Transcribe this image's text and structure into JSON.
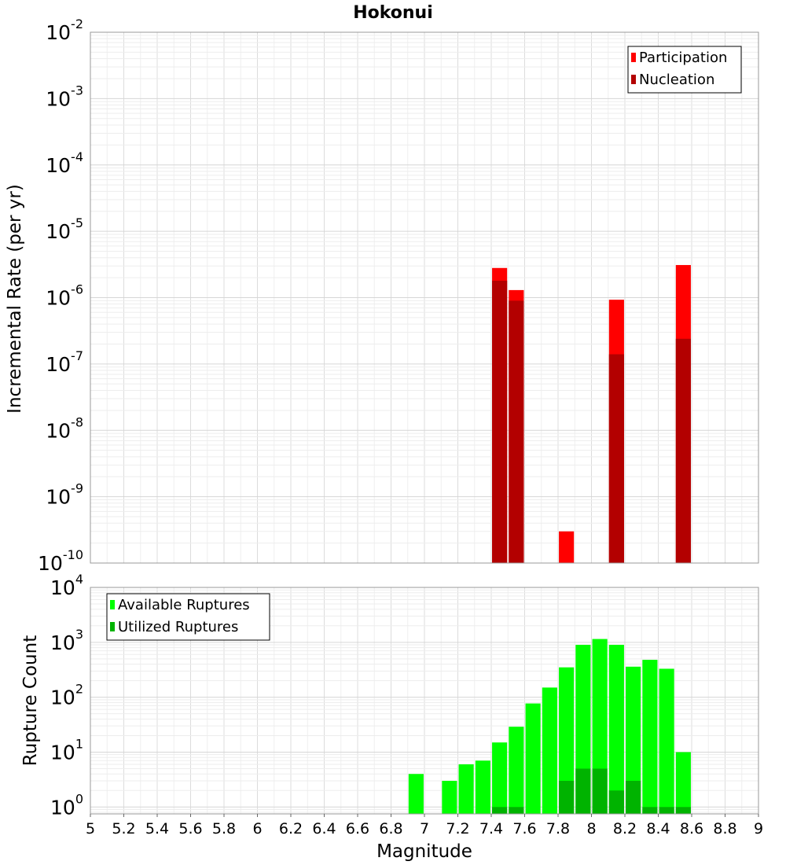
{
  "chart_data": [
    {
      "type": "bar",
      "title": "Hokonui",
      "xlabel": "",
      "ylabel": "Incremental Rate (per yr)",
      "yscale": "log",
      "ylim": [
        1e-10,
        0.01
      ],
      "xlim": [
        5,
        9
      ],
      "grid": true,
      "legend_position": "top-right",
      "y_ticks": [
        "10^-2",
        "10^-3",
        "10^-4",
        "10^-5",
        "10^-6",
        "10^-7",
        "10^-8",
        "10^-9",
        "10^-10"
      ],
      "x": [
        7.45,
        7.55,
        7.85,
        8.15,
        8.55
      ],
      "series": [
        {
          "name": "Participation",
          "color": "#ff0000",
          "values": [
            2.8e-06,
            1.3e-06,
            3e-10,
            9.3e-07,
            3.1e-06
          ]
        },
        {
          "name": "Nucleation",
          "color": "#b30000",
          "values": [
            1.8e-06,
            9e-07,
            null,
            1.4e-07,
            2.4e-07
          ]
        }
      ]
    },
    {
      "type": "bar",
      "title": "",
      "xlabel": "Magnitude",
      "ylabel": "Rupture Count",
      "yscale": "log",
      "ylim": [
        0.75,
        10000
      ],
      "xlim": [
        5,
        9
      ],
      "grid": true,
      "legend_position": "top-left",
      "y_ticks": [
        "10^4",
        "10^3",
        "10^2",
        "10^1",
        "10^0"
      ],
      "x_ticks": [
        "5",
        "5.2",
        "5.4",
        "5.6",
        "5.8",
        "6",
        "6.2",
        "6.4",
        "6.6",
        "6.8",
        "7",
        "7.2",
        "7.4",
        "7.6",
        "7.8",
        "8",
        "8.2",
        "8.4",
        "8.6",
        "8.8",
        "9"
      ],
      "x": [
        6.95,
        7.15,
        7.25,
        7.35,
        7.45,
        7.55,
        7.65,
        7.75,
        7.85,
        7.95,
        8.05,
        8.15,
        8.25,
        8.35,
        8.45,
        8.55
      ],
      "series": [
        {
          "name": "Available Ruptures",
          "color": "#00ff00",
          "values": [
            4,
            3,
            6,
            7,
            15,
            29,
            77,
            150,
            350,
            900,
            1150,
            900,
            360,
            480,
            330,
            10
          ]
        },
        {
          "name": "Utilized Ruptures",
          "color": "#00b300",
          "values": [
            null,
            null,
            null,
            null,
            1,
            1,
            null,
            null,
            3,
            5,
            5,
            2,
            3,
            1,
            1,
            1
          ]
        }
      ]
    }
  ]
}
